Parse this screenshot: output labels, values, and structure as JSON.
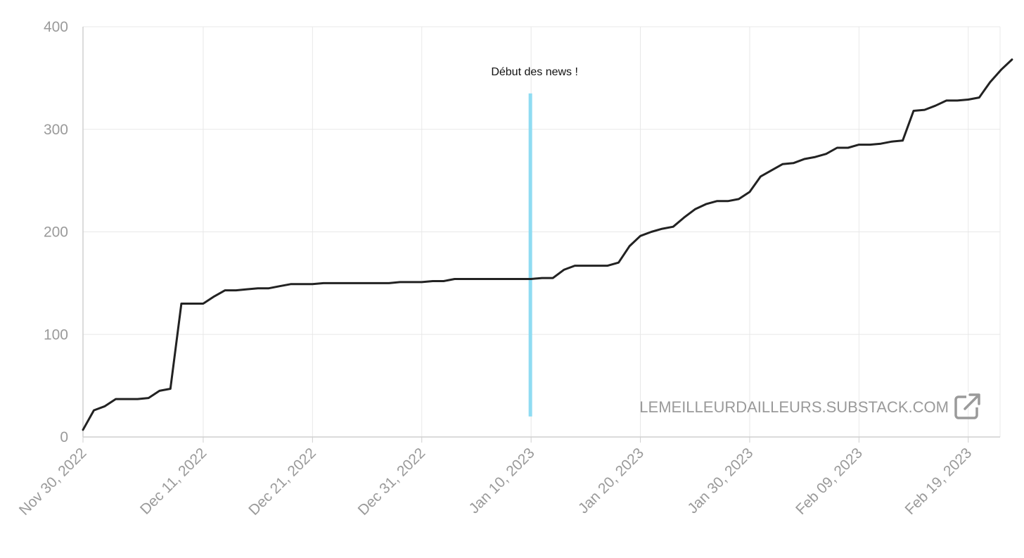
{
  "chart_data": {
    "type": "line",
    "title": "",
    "xlabel": "",
    "ylabel": "",
    "ylim": [
      0,
      400
    ],
    "yticks": [
      0,
      100,
      200,
      300,
      400
    ],
    "xticks": [
      "Nov 30, 2022",
      "Dec 11, 2022",
      "Dec 21, 2022",
      "Dec 31, 2022",
      "Jan 10, 2023",
      "Jan 20, 2023",
      "Jan 30, 2023",
      "Feb 09, 2023",
      "Feb 19, 2023"
    ],
    "grid": true,
    "legend": "none",
    "colors": {
      "line": "#222222",
      "marker": "#8fdcf2",
      "grid": "#e8e8e8",
      "axis": "#cfcfcf",
      "ticks": "#9a9a9a"
    },
    "annotation": {
      "label": "Début des news !",
      "x": "2023-01-10",
      "y_range": [
        20,
        335
      ]
    },
    "watermark": "LEMEILLEURDAILLEURS.SUBSTACK.COM",
    "watermark_icon": "external-link-icon",
    "series": [
      {
        "x": [
          "2022-11-30",
          "2022-12-01",
          "2022-12-02",
          "2022-12-03",
          "2022-12-04",
          "2022-12-05",
          "2022-12-06",
          "2022-12-07",
          "2022-12-08",
          "2022-12-09",
          "2022-12-10",
          "2022-12-11",
          "2022-12-12",
          "2022-12-13",
          "2022-12-14",
          "2022-12-15",
          "2022-12-16",
          "2022-12-17",
          "2022-12-18",
          "2022-12-19",
          "2022-12-20",
          "2022-12-21",
          "2022-12-22",
          "2022-12-23",
          "2022-12-24",
          "2022-12-25",
          "2022-12-26",
          "2022-12-27",
          "2022-12-28",
          "2022-12-29",
          "2022-12-30",
          "2022-12-31",
          "2023-01-01",
          "2023-01-02",
          "2023-01-03",
          "2023-01-04",
          "2023-01-05",
          "2023-01-06",
          "2023-01-07",
          "2023-01-08",
          "2023-01-09",
          "2023-01-10",
          "2023-01-11",
          "2023-01-12",
          "2023-01-13",
          "2023-01-14",
          "2023-01-15",
          "2023-01-16",
          "2023-01-17",
          "2023-01-18",
          "2023-01-19",
          "2023-01-20",
          "2023-01-21",
          "2023-01-22",
          "2023-01-23",
          "2023-01-24",
          "2023-01-25",
          "2023-01-26",
          "2023-01-27",
          "2023-01-28",
          "2023-01-29",
          "2023-01-30",
          "2023-01-31",
          "2023-02-01",
          "2023-02-02",
          "2023-02-03",
          "2023-02-04",
          "2023-02-05",
          "2023-02-06",
          "2023-02-07",
          "2023-02-08",
          "2023-02-09",
          "2023-02-10",
          "2023-02-11",
          "2023-02-12",
          "2023-02-13",
          "2023-02-14",
          "2023-02-15",
          "2023-02-16",
          "2023-02-17",
          "2023-02-18",
          "2023-02-19",
          "2023-02-20",
          "2023-02-21",
          "2023-02-22",
          "2023-02-23"
        ],
        "y": [
          7,
          26,
          30,
          37,
          37,
          37,
          38,
          45,
          47,
          130,
          130,
          130,
          137,
          143,
          143,
          144,
          145,
          145,
          147,
          149,
          149,
          149,
          150,
          150,
          150,
          150,
          150,
          150,
          150,
          151,
          151,
          151,
          152,
          152,
          154,
          154,
          154,
          154,
          154,
          154,
          154,
          154,
          155,
          155,
          163,
          167,
          167,
          167,
          167,
          170,
          186,
          196,
          200,
          203,
          205,
          214,
          222,
          227,
          230,
          230,
          232,
          239,
          254,
          260,
          266,
          267,
          271,
          273,
          276,
          282,
          282,
          285,
          285,
          286,
          288,
          289,
          318,
          319,
          323,
          328,
          328,
          329,
          331,
          346,
          358,
          368
        ]
      }
    ]
  }
}
